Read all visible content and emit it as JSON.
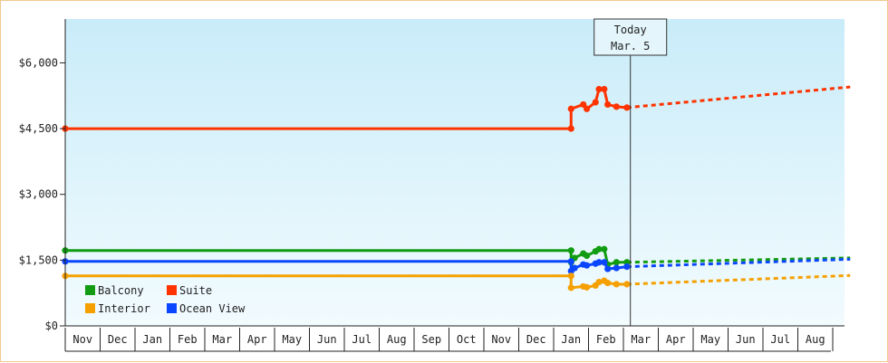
{
  "chart_data": {
    "type": "line",
    "ylim": [
      0,
      7000
    ],
    "y_ticks": [
      0,
      1500,
      3000,
      4500,
      6000
    ],
    "y_tick_labels": [
      "$0",
      "$1,500",
      "$3,000",
      "$4,500",
      "$6,000"
    ],
    "x_tick_labels": [
      "Nov",
      "Dec",
      "Jan",
      "Feb",
      "Mar",
      "Apr",
      "May",
      "Jun",
      "Jul",
      "Aug",
      "Sep",
      "Oct",
      "Nov",
      "Dec",
      "Jan",
      "Feb",
      "Mar",
      "Apr",
      "May",
      "Jun",
      "Jul",
      "Aug"
    ],
    "today_label": [
      "Today",
      "Mar. 5"
    ],
    "today_x": 16.2,
    "colors": {
      "Balcony": "#119c11",
      "Suite": "#ff3300",
      "Interior": "#f5a000",
      "Ocean View": "#0b46ff"
    },
    "legend": {
      "placement": "bottom-left",
      "entries": [
        "Balcony",
        "Suite",
        "Interior",
        "Ocean View"
      ]
    },
    "series": [
      {
        "name": "Suite",
        "points": [
          [
            0,
            4500
          ],
          [
            14.5,
            4500
          ],
          [
            14.5,
            4950
          ],
          [
            14.85,
            5050
          ],
          [
            14.95,
            4950
          ],
          [
            15.2,
            5100
          ],
          [
            15.3,
            5400
          ],
          [
            15.45,
            5400
          ],
          [
            15.55,
            5050
          ],
          [
            15.8,
            5000
          ],
          [
            16.1,
            4980
          ]
        ],
        "projection": [
          [
            16.1,
            4980
          ],
          [
            22.5,
            5450
          ]
        ]
      },
      {
        "name": "Balcony",
        "points": [
          [
            0,
            1720
          ],
          [
            14.5,
            1720
          ],
          [
            14.5,
            1450
          ],
          [
            14.6,
            1550
          ],
          [
            14.85,
            1650
          ],
          [
            14.95,
            1600
          ],
          [
            15.2,
            1700
          ],
          [
            15.3,
            1750
          ],
          [
            15.45,
            1750
          ],
          [
            15.55,
            1400
          ],
          [
            15.8,
            1450
          ],
          [
            16.1,
            1450
          ]
        ],
        "projection": [
          [
            16.1,
            1450
          ],
          [
            22.5,
            1550
          ]
        ]
      },
      {
        "name": "Ocean View",
        "points": [
          [
            0,
            1470
          ],
          [
            14.5,
            1470
          ],
          [
            14.5,
            1250
          ],
          [
            14.6,
            1320
          ],
          [
            14.85,
            1400
          ],
          [
            14.95,
            1380
          ],
          [
            15.2,
            1420
          ],
          [
            15.3,
            1450
          ],
          [
            15.45,
            1450
          ],
          [
            15.55,
            1300
          ],
          [
            15.8,
            1320
          ],
          [
            16.1,
            1350
          ]
        ],
        "projection": [
          [
            16.1,
            1350
          ],
          [
            22.5,
            1520
          ]
        ]
      },
      {
        "name": "Interior",
        "points": [
          [
            0,
            1140
          ],
          [
            14.5,
            1140
          ],
          [
            14.5,
            870
          ],
          [
            14.85,
            900
          ],
          [
            14.95,
            880
          ],
          [
            15.2,
            920
          ],
          [
            15.3,
            1000
          ],
          [
            15.45,
            1030
          ],
          [
            15.55,
            980
          ],
          [
            15.8,
            950
          ],
          [
            16.1,
            950
          ]
        ],
        "projection": [
          [
            16.1,
            950
          ],
          [
            22.5,
            1150
          ]
        ]
      }
    ]
  }
}
